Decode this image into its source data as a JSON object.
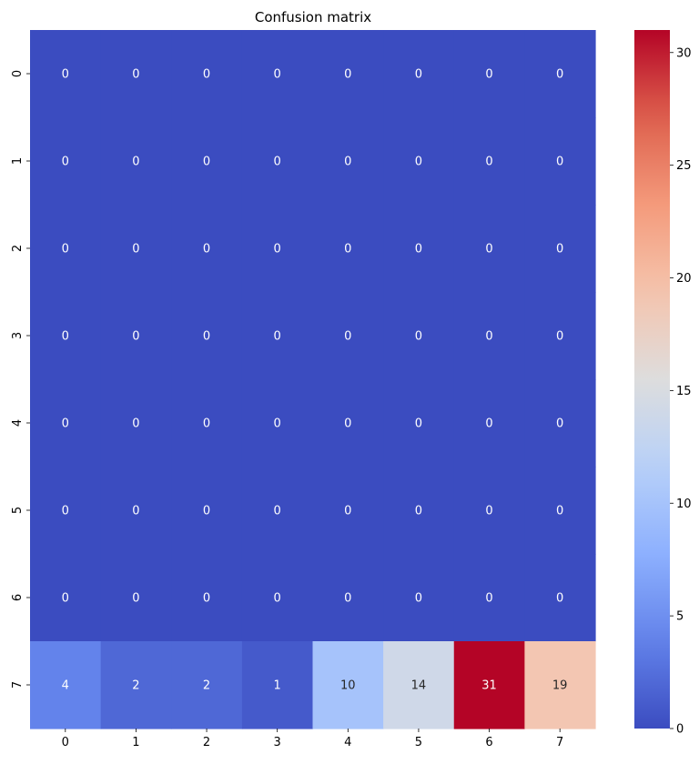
{
  "chart_data": {
    "type": "heatmap",
    "title": "Confusion matrix",
    "xlabel": "",
    "ylabel": "",
    "x_categories": [
      "0",
      "1",
      "2",
      "3",
      "4",
      "5",
      "6",
      "7"
    ],
    "y_categories": [
      "0",
      "1",
      "2",
      "3",
      "4",
      "5",
      "6",
      "7"
    ],
    "values": [
      [
        0,
        0,
        0,
        0,
        0,
        0,
        0,
        0
      ],
      [
        0,
        0,
        0,
        0,
        0,
        0,
        0,
        0
      ],
      [
        0,
        0,
        0,
        0,
        0,
        0,
        0,
        0
      ],
      [
        0,
        0,
        0,
        0,
        0,
        0,
        0,
        0
      ],
      [
        0,
        0,
        0,
        0,
        0,
        0,
        0,
        0
      ],
      [
        0,
        0,
        0,
        0,
        0,
        0,
        0,
        0
      ],
      [
        0,
        0,
        0,
        0,
        0,
        0,
        0,
        0
      ],
      [
        4,
        2,
        2,
        1,
        10,
        14,
        31,
        19
      ]
    ],
    "colormap": "coolwarm",
    "color_range": [
      0,
      31
    ],
    "colorbar_ticks": [
      0,
      5,
      10,
      15,
      20,
      25,
      30
    ],
    "annotations": true,
    "grid": false
  }
}
